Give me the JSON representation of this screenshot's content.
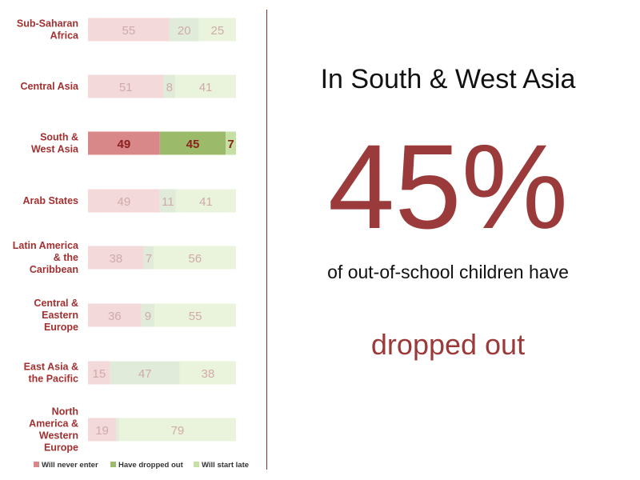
{
  "chart_data": {
    "type": "bar",
    "orientation": "horizontal",
    "stacked": true,
    "categories": [
      "Sub-Saharan Africa",
      "Central Asia",
      "South & West Asia",
      "Arab States",
      "Latin America & the Caribbean",
      "Central & Eastern Europe",
      "East Asia & the Pacific",
      "North America & Western Europe"
    ],
    "category_lines": [
      [
        "Sub-Saharan",
        "Africa"
      ],
      [
        "Central Asia"
      ],
      [
        "South &",
        "West Asia"
      ],
      [
        "Arab States"
      ],
      [
        "Latin America",
        "& the",
        "Caribbean"
      ],
      [
        "Central &",
        "Eastern",
        "Europe"
      ],
      [
        "East Asia &",
        "the Pacific"
      ],
      [
        "North",
        "America &",
        "Western",
        "Europe"
      ]
    ],
    "series": [
      {
        "name": "Will never enter",
        "values": [
          55,
          51,
          49,
          49,
          38,
          36,
          15,
          19
        ],
        "color": "#d9888a",
        "faded_color": "#f4d9da"
      },
      {
        "name": "Have dropped out",
        "values": [
          20,
          8,
          45,
          11,
          7,
          9,
          47,
          2
        ],
        "color": "#9bbb6a",
        "faded_color": "#e0ebd9"
      },
      {
        "name": "Will start late",
        "values": [
          25,
          41,
          7,
          41,
          56,
          55,
          38,
          79
        ],
        "color": "#c6e0a4",
        "faded_color": "#eaf4dd"
      }
    ],
    "data_labels": [
      [
        "55",
        "20",
        "25"
      ],
      [
        "51",
        "8",
        "41"
      ],
      [
        "49",
        "45",
        "7"
      ],
      [
        "49",
        "11",
        "41"
      ],
      [
        "38",
        "7",
        "56"
      ],
      [
        "36",
        "9",
        "55"
      ],
      [
        "15",
        "47",
        "38"
      ],
      [
        "19",
        "",
        "79"
      ]
    ],
    "highlight_index": 2,
    "legend_position": "bottom",
    "category_label_color": "#a33030"
  },
  "headline": {
    "region": "In South & West Asia",
    "percent": "45%",
    "description": "of out-of-school children have",
    "outcome": "dropped out"
  },
  "colors": {
    "accent": "#9b3a3a",
    "divider": "#8b2a2a"
  }
}
